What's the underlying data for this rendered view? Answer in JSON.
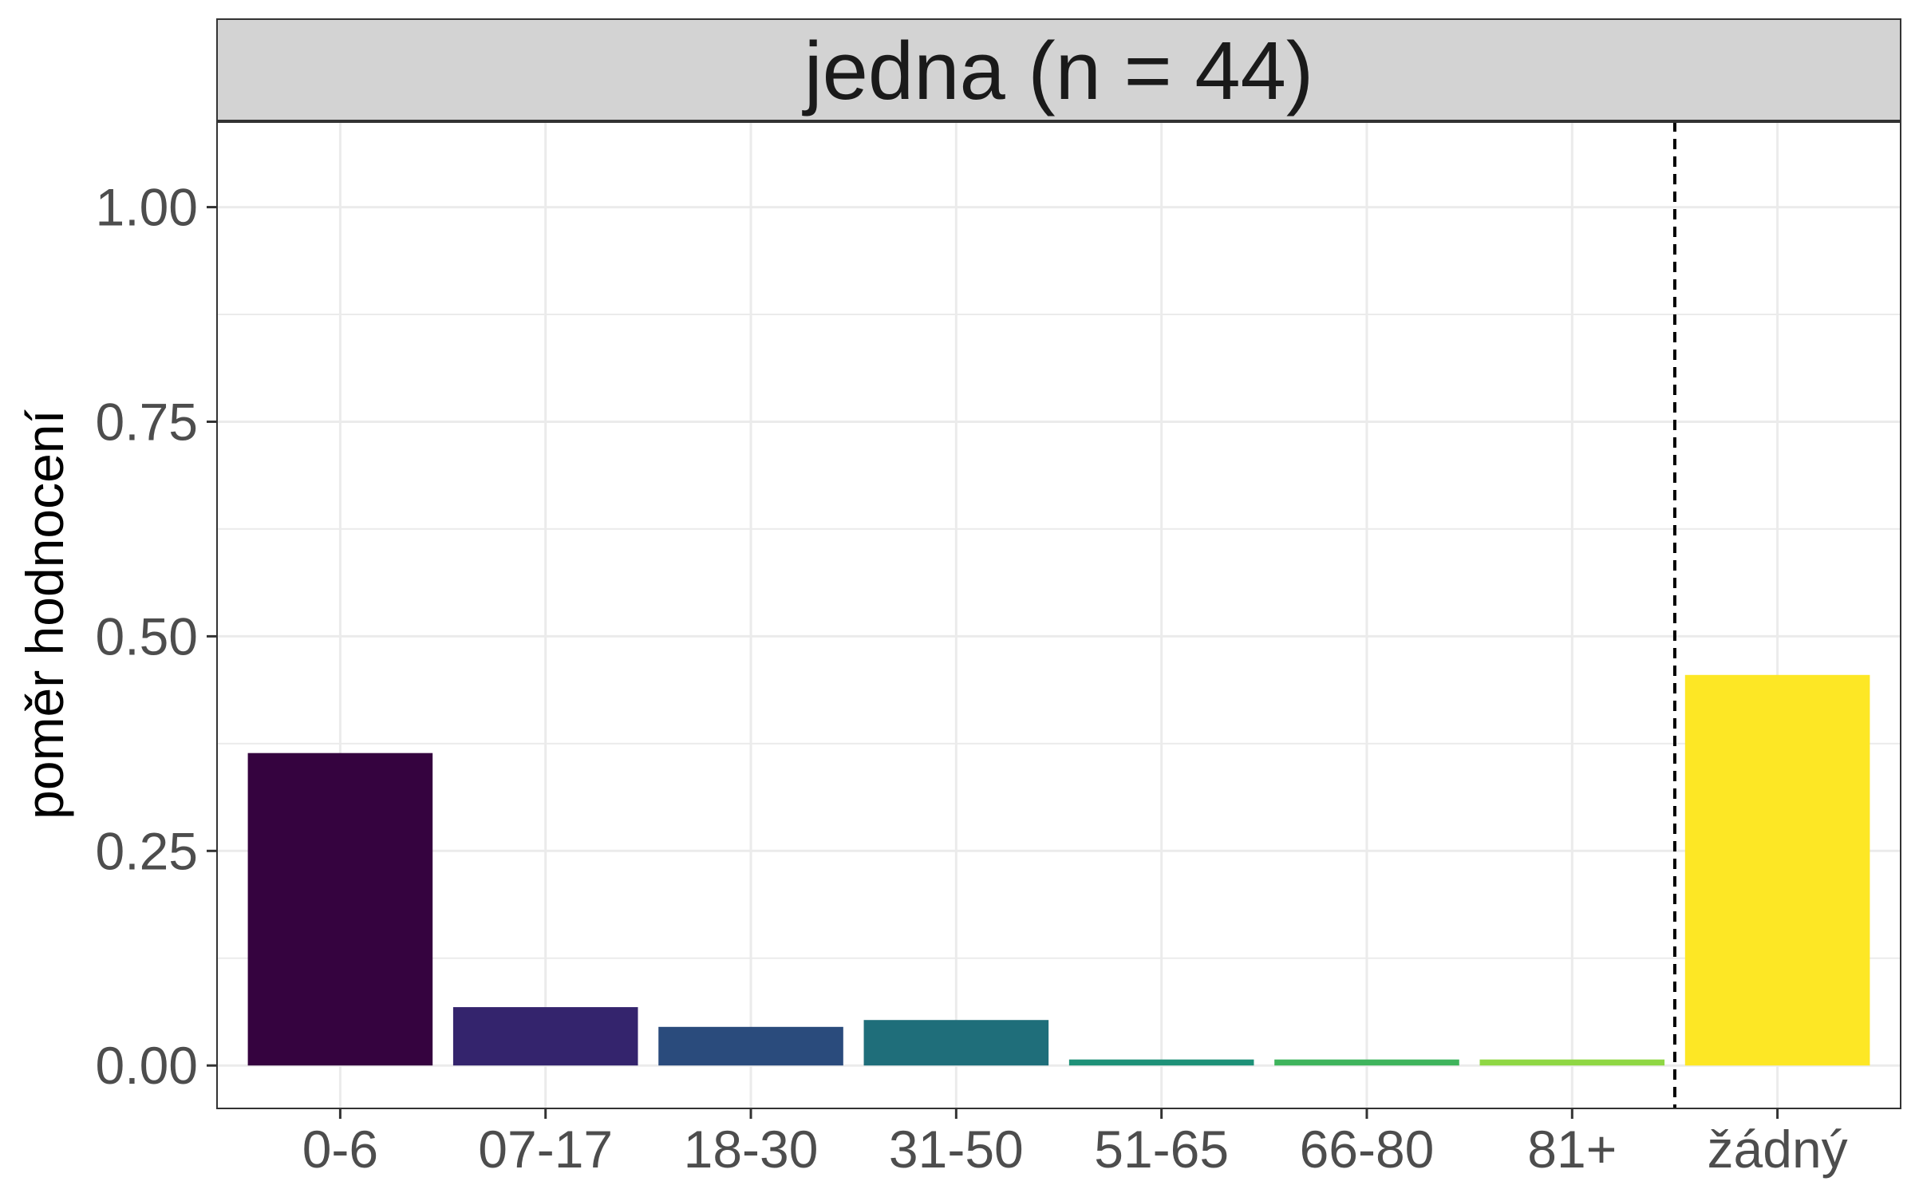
{
  "chart_data": {
    "type": "bar",
    "panel_title": "jedna (n = 44)",
    "ylabel": "poměr hodnocení",
    "xlabel": "",
    "categories": [
      "0-6",
      "07-17",
      "18-30",
      "31-50",
      "51-65",
      "66-80",
      "81+",
      "žádný"
    ],
    "values": [
      0.364,
      0.068,
      0.045,
      0.053,
      0.007,
      0.007,
      0.007,
      0.455
    ],
    "colors": [
      "#35033f",
      "#34246d",
      "#2a4b7c",
      "#1f6e7a",
      "#1e9178",
      "#3fb45c",
      "#8fd744",
      "#fde725"
    ],
    "ylim": [
      -0.05,
      1.1
    ],
    "yticks": [
      0.0,
      0.25,
      0.5,
      0.75,
      1.0
    ],
    "ytick_labels": [
      "0.00",
      "0.25",
      "0.50",
      "0.75",
      "1.00"
    ],
    "separator_after_category": "81+",
    "grid": true,
    "legend": "none"
  }
}
